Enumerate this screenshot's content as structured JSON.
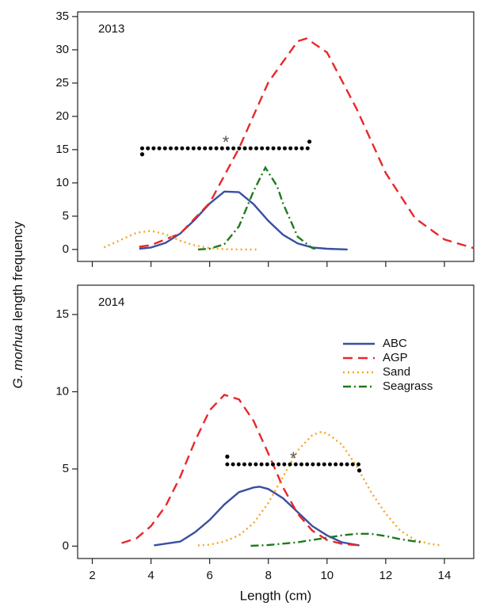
{
  "ylabel": {
    "italic": "G. morhua",
    "rest": "length frequency"
  },
  "chart_data": [
    {
      "type": "line",
      "label": "2013",
      "xlim": [
        1.5,
        15
      ],
      "xticks": [
        2,
        4,
        6,
        8,
        10,
        12,
        14
      ],
      "show_xtick_labels": false,
      "ylim": [
        -1.8,
        35.7
      ],
      "yticks": [
        0,
        5,
        10,
        15,
        20,
        25,
        30,
        35
      ],
      "series": [
        {
          "name": "ABC",
          "color": "#3a4fa0",
          "style": "solid",
          "x": [
            3.6,
            4,
            4.5,
            5,
            5.5,
            6,
            6.5,
            7,
            7.5,
            8,
            8.5,
            9,
            9.5,
            10,
            10.7
          ],
          "values": [
            0.1,
            0.3,
            1.0,
            2.4,
            4.5,
            6.9,
            8.7,
            8.6,
            6.8,
            4.3,
            2.2,
            0.9,
            0.3,
            0.1,
            0
          ]
        },
        {
          "name": "AGP",
          "color": "#e8282b",
          "style": "dashed",
          "x": [
            3.6,
            4,
            5,
            6,
            7,
            8,
            9,
            9.3,
            10,
            11,
            12,
            13,
            14,
            15
          ],
          "values": [
            0.4,
            0.65,
            2.4,
            7.0,
            15.2,
            25.1,
            31.3,
            31.7,
            29.6,
            21.2,
            11.5,
            4.7,
            1.5,
            0.2
          ]
        },
        {
          "name": "Sand",
          "color": "#f5a623",
          "style": "dotted",
          "x": [
            2.4,
            3,
            3.5,
            4,
            4.5,
            5,
            5.5,
            6,
            6.5,
            7,
            7.6
          ],
          "values": [
            0.3,
            1.5,
            2.5,
            2.8,
            2.3,
            1.3,
            0.6,
            0.2,
            0.05,
            0,
            0
          ]
        },
        {
          "name": "Seagrass",
          "color": "#1e7a1e",
          "style": "dashdot",
          "x": [
            5.6,
            6,
            6.5,
            7,
            7.5,
            7.9,
            8.3,
            8.5,
            9,
            9.5,
            9.6
          ],
          "values": [
            0,
            0.1,
            0.8,
            3.5,
            8.8,
            12.3,
            9.5,
            6.9,
            1.9,
            0.2,
            0.1
          ]
        }
      ],
      "significance": {
        "label": "*",
        "x_start": 3.7,
        "x_end": 9.4,
        "y": 15.2,
        "ends": [
          14.3,
          16.2
        ]
      }
    },
    {
      "type": "line",
      "label": "2014",
      "xlabel": "Length (cm)",
      "xlim": [
        1.5,
        15
      ],
      "xticks": [
        2,
        4,
        6,
        8,
        10,
        12,
        14
      ],
      "show_xtick_labels": true,
      "ylim": [
        -0.8,
        16.9
      ],
      "yticks": [
        0,
        5,
        10,
        15
      ],
      "legend": "top-right",
      "series": [
        {
          "name": "ABC",
          "color": "#3a4fa0",
          "style": "solid",
          "x": [
            4.1,
            5,
            5.5,
            6,
            6.5,
            7,
            7.5,
            7.7,
            8,
            8.5,
            9,
            9.5,
            10,
            10.5,
            11.1
          ],
          "values": [
            0.05,
            0.3,
            0.9,
            1.7,
            2.7,
            3.5,
            3.8,
            3.85,
            3.7,
            3.1,
            2.2,
            1.3,
            0.7,
            0.25,
            0.05
          ]
        },
        {
          "name": "AGP",
          "color": "#e8282b",
          "style": "dashed",
          "x": [
            3,
            3.5,
            4,
            4.5,
            5,
            5.5,
            6,
            6.5,
            7,
            7.5,
            8,
            8.5,
            9,
            9.5,
            10,
            10.5,
            11.1
          ],
          "values": [
            0.2,
            0.5,
            1.3,
            2.6,
            4.5,
            6.8,
            8.8,
            9.8,
            9.5,
            8.1,
            6.0,
            3.8,
            2.1,
            1.0,
            0.4,
            0.15,
            0.05
          ]
        },
        {
          "name": "Sand",
          "color": "#f5a623",
          "style": "dotted",
          "x": [
            5.6,
            6,
            6.5,
            7,
            7.5,
            8,
            8.5,
            9,
            9.5,
            9.8,
            10,
            10.5,
            11,
            11.5,
            12,
            12.5,
            13,
            13.5,
            13.9
          ],
          "values": [
            0.05,
            0.1,
            0.3,
            0.7,
            1.5,
            2.8,
            4.5,
            6.2,
            7.2,
            7.4,
            7.3,
            6.6,
            5.2,
            3.5,
            2.1,
            1.0,
            0.4,
            0.15,
            0.05
          ]
        },
        {
          "name": "Seagrass",
          "color": "#1e7a1e",
          "style": "dashdot",
          "x": [
            7.4,
            8,
            9,
            10,
            10.5,
            11,
            11.5,
            12,
            12.5,
            13.2
          ],
          "values": [
            0.02,
            0.07,
            0.25,
            0.55,
            0.7,
            0.8,
            0.8,
            0.65,
            0.45,
            0.25
          ]
        }
      ],
      "significance": {
        "label": "*",
        "x_start": 6.6,
        "x_end": 11.1,
        "y": 5.3,
        "ends": [
          5.8,
          4.9
        ]
      }
    }
  ]
}
